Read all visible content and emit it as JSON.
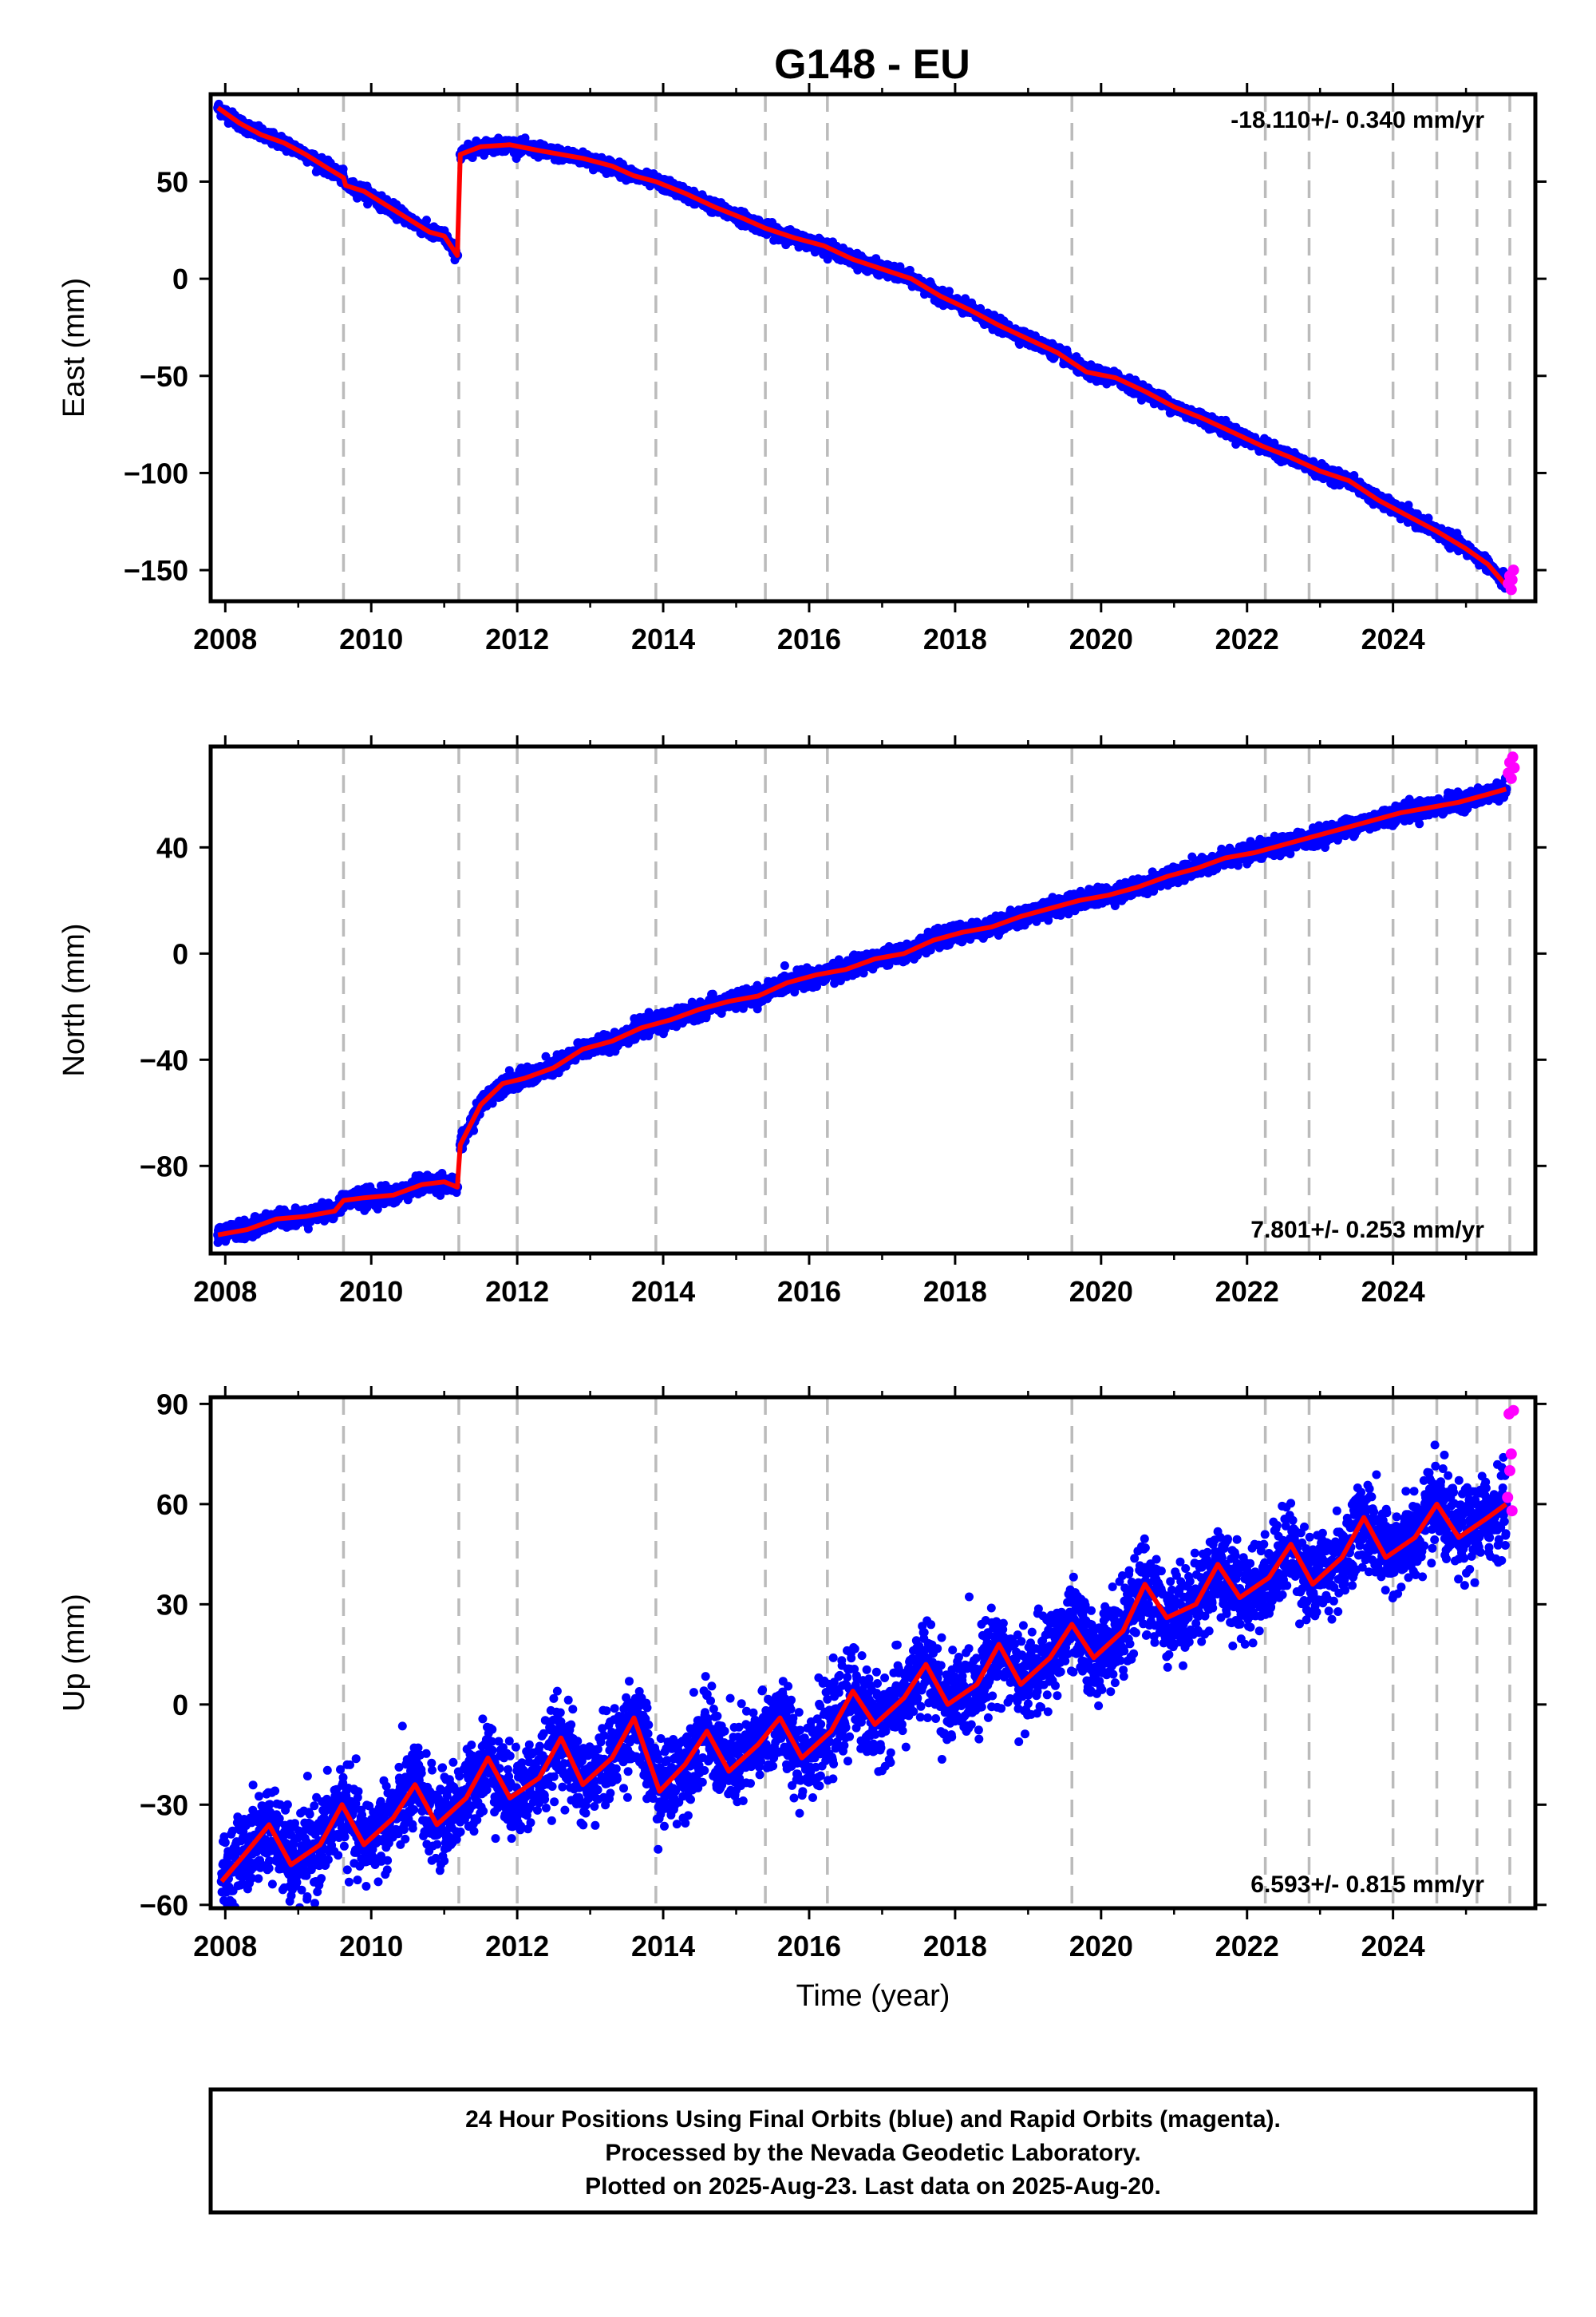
{
  "title": "G148 - EU",
  "footer": {
    "lines": [
      "24 Hour Positions Using Final Orbits (blue) and Rapid Orbits (magenta).",
      "Processed by the Nevada Geodetic Laboratory.",
      "Plotted on 2025-Aug-23. Last data on 2025-Aug-20."
    ]
  },
  "colors": {
    "final_orbits": "#0000ff",
    "rapid_orbits": "#ff00ff",
    "model_fit": "#ff0000",
    "step_lines": "#bbbbbb",
    "frame": "#000000"
  },
  "chart_data": [
    {
      "type": "scatter",
      "id": "east",
      "ylabel": "East (mm)",
      "xlabel": "",
      "xlim": [
        2007.8,
        2025.95
      ],
      "ylim": [
        -166,
        95
      ],
      "xticks": [
        2008,
        2010,
        2012,
        2014,
        2016,
        2018,
        2020,
        2022,
        2024
      ],
      "yticks": [
        50,
        0,
        -50,
        -100,
        -150
      ],
      "ytick_labels": [
        "50",
        "0",
        "−50",
        "−100",
        "−150"
      ],
      "rate_label": "-18.110+/- 0.340 mm/yr",
      "rate_position": "top-right",
      "steps": [
        2009.62,
        2011.2,
        2012.0,
        2013.9,
        2015.4,
        2016.25,
        2019.6,
        2022.25,
        2022.85,
        2024.0,
        2024.6,
        2025.15,
        2025.6
      ],
      "series": [
        {
          "name": "Final orbits",
          "x": [
            2007.9,
            2008.2,
            2008.5,
            2008.8,
            2009.1,
            2009.4,
            2009.62,
            2009.65,
            2009.9,
            2010.2,
            2010.5,
            2010.8,
            2011.0,
            2011.18,
            2011.22,
            2011.5,
            2011.9,
            2012.3,
            2012.6,
            2012.9,
            2013.3,
            2013.6,
            2013.9,
            2014.3,
            2014.7,
            2015.1,
            2015.4,
            2015.8,
            2016.2,
            2016.6,
            2017.0,
            2017.4,
            2017.8,
            2018.2,
            2018.6,
            2019.0,
            2019.4,
            2019.8,
            2020.2,
            2020.6,
            2021.0,
            2021.4,
            2021.8,
            2022.2,
            2022.6,
            2023.0,
            2023.4,
            2023.8,
            2024.2,
            2024.6,
            2025.0,
            2025.3,
            2025.55
          ],
          "y": [
            88,
            80,
            74,
            70,
            64,
            57,
            52,
            48,
            45,
            38,
            31,
            24,
            22,
            12,
            64,
            68,
            69,
            66,
            64,
            62,
            58,
            53,
            50,
            44,
            37,
            31,
            26,
            21,
            17,
            10,
            5,
            0,
            -9,
            -16,
            -24,
            -31,
            -38,
            -48,
            -51,
            -58,
            -66,
            -72,
            -79,
            -86,
            -92,
            -99,
            -104,
            -114,
            -122,
            -130,
            -139,
            -147,
            -158
          ]
        },
        {
          "name": "Rapid orbits",
          "x": [
            2025.58,
            2025.6,
            2025.62,
            2025.63,
            2025.65
          ],
          "y": [
            -157,
            -153,
            -160,
            -155,
            -150
          ]
        }
      ]
    },
    {
      "type": "scatter",
      "id": "north",
      "ylabel": "North (mm)",
      "xlabel": "",
      "xlim": [
        2007.8,
        2025.95
      ],
      "ylim": [
        -113,
        78
      ],
      "xticks": [
        2008,
        2010,
        2012,
        2014,
        2016,
        2018,
        2020,
        2022,
        2024
      ],
      "yticks": [
        40,
        0,
        -40,
        -80
      ],
      "ytick_labels": [
        "40",
        "0",
        "−40",
        "−80"
      ],
      "rate_label": "7.801+/- 0.253 mm/yr",
      "rate_position": "bottom-right",
      "steps": [
        2009.62,
        2011.2,
        2012.0,
        2013.9,
        2015.4,
        2016.25,
        2019.6,
        2022.25,
        2022.85,
        2024.0,
        2024.6,
        2025.15,
        2025.6
      ],
      "series": [
        {
          "name": "Final orbits",
          "x": [
            2007.9,
            2008.3,
            2008.7,
            2009.1,
            2009.5,
            2009.62,
            2009.9,
            2010.3,
            2010.7,
            2011.0,
            2011.18,
            2011.22,
            2011.5,
            2011.8,
            2012.1,
            2012.5,
            2012.9,
            2013.3,
            2013.7,
            2014.1,
            2014.5,
            2014.9,
            2015.3,
            2015.7,
            2016.1,
            2016.5,
            2016.9,
            2017.3,
            2017.7,
            2018.1,
            2018.5,
            2018.9,
            2019.3,
            2019.7,
            2020.1,
            2020.5,
            2020.9,
            2021.3,
            2021.7,
            2022.1,
            2022.5,
            2022.9,
            2023.3,
            2023.7,
            2024.1,
            2024.5,
            2024.9,
            2025.3,
            2025.55
          ],
          "y": [
            -106,
            -104,
            -100,
            -99,
            -97,
            -93,
            -92,
            -91,
            -87,
            -86,
            -88,
            -72,
            -57,
            -49,
            -47,
            -43,
            -36,
            -33,
            -28,
            -25,
            -21,
            -18,
            -16,
            -11,
            -8,
            -6,
            -2,
            0,
            5,
            8,
            10,
            14,
            17,
            20,
            22,
            25,
            29,
            32,
            36,
            38,
            41,
            44,
            47,
            50,
            53,
            55,
            57,
            60,
            62
          ]
        },
        {
          "name": "Rapid orbits",
          "x": [
            2025.58,
            2025.6,
            2025.62,
            2025.64,
            2025.66
          ],
          "y": [
            68,
            72,
            66,
            74,
            70
          ]
        }
      ]
    },
    {
      "type": "scatter",
      "id": "up",
      "ylabel": "Up (mm)",
      "xlabel": "Time (year)",
      "xlim": [
        2007.8,
        2025.95
      ],
      "ylim": [
        -61,
        92
      ],
      "xticks": [
        2008,
        2010,
        2012,
        2014,
        2016,
        2018,
        2020,
        2022,
        2024
      ],
      "yticks": [
        90,
        60,
        30,
        0,
        -30,
        -60
      ],
      "ytick_labels": [
        "90",
        "60",
        "30",
        "0",
        "−30",
        "−60"
      ],
      "rate_label": "6.593+/- 0.815 mm/yr",
      "rate_position": "bottom-right",
      "steps": [
        2009.62,
        2011.2,
        2012.0,
        2013.9,
        2015.4,
        2016.25,
        2019.6,
        2022.25,
        2022.85,
        2024.0,
        2024.6,
        2025.15,
        2025.6
      ],
      "series": [
        {
          "name": "Final orbits",
          "x": [
            2007.95,
            2008.3,
            2008.6,
            2008.9,
            2009.3,
            2009.6,
            2009.9,
            2010.3,
            2010.6,
            2010.9,
            2011.3,
            2011.6,
            2011.9,
            2012.3,
            2012.6,
            2012.9,
            2013.3,
            2013.6,
            2013.95,
            2014.3,
            2014.6,
            2014.9,
            2015.3,
            2015.6,
            2015.9,
            2016.3,
            2016.6,
            2016.9,
            2017.3,
            2017.6,
            2017.9,
            2018.3,
            2018.6,
            2018.9,
            2019.3,
            2019.6,
            2019.9,
            2020.3,
            2020.6,
            2020.9,
            2021.3,
            2021.6,
            2021.9,
            2022.3,
            2022.6,
            2022.9,
            2023.3,
            2023.6,
            2023.9,
            2024.3,
            2024.6,
            2024.9,
            2025.3,
            2025.55
          ],
          "y": [
            -53,
            -44,
            -36,
            -48,
            -42,
            -30,
            -42,
            -34,
            -24,
            -36,
            -28,
            -16,
            -28,
            -22,
            -10,
            -24,
            -16,
            -4,
            -26,
            -18,
            -8,
            -20,
            -12,
            -4,
            -16,
            -8,
            4,
            -6,
            2,
            12,
            0,
            6,
            18,
            6,
            14,
            24,
            14,
            22,
            36,
            26,
            30,
            42,
            32,
            38,
            48,
            36,
            44,
            56,
            44,
            50,
            60,
            50,
            56,
            60
          ]
        },
        {
          "name": "Rapid orbits",
          "x": [
            2025.57,
            2025.59,
            2025.6,
            2025.62,
            2025.63,
            2025.65
          ],
          "y": [
            62,
            87,
            70,
            75,
            58,
            88
          ]
        }
      ]
    }
  ]
}
